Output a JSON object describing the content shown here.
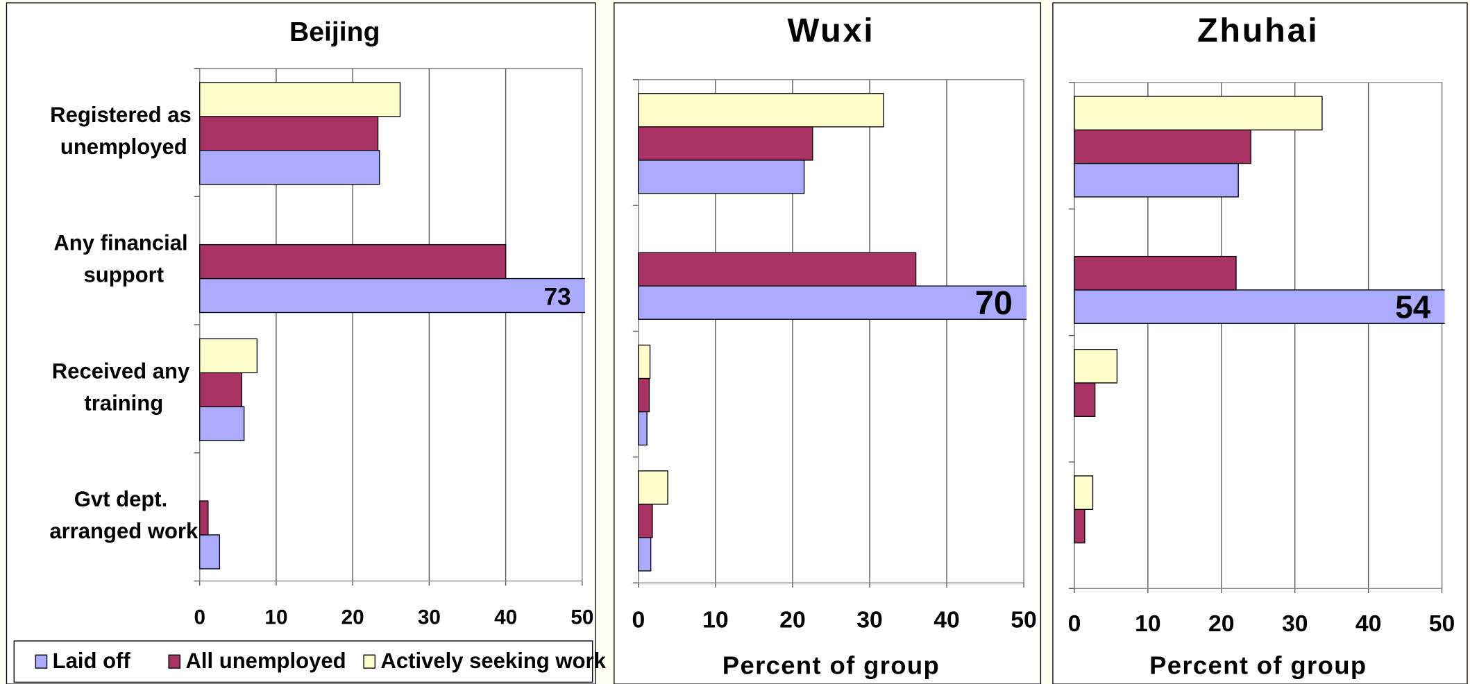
{
  "chart_data": [
    {
      "type": "bar",
      "orientation": "horizontal",
      "title": "Beijing",
      "categories": [
        "Registered as unemployed",
        "Any financial support",
        "Received any training",
        "Gvt dept. arranged work"
      ],
      "series": [
        {
          "name": "Laid off",
          "color": "#aaaaff",
          "values": [
            23.5,
            73,
            5.8,
            2.6
          ],
          "value_labels": [
            null,
            "73",
            null,
            null
          ]
        },
        {
          "name": "All unemployed",
          "color": "#aa3366",
          "values": [
            23.3,
            40,
            5.5,
            1.1
          ]
        },
        {
          "name": "Actively seeking work",
          "color": "#ffffcc",
          "values": [
            26.2,
            null,
            7.5,
            null
          ]
        }
      ],
      "xlim": [
        0,
        50
      ],
      "xticks": [
        0,
        10,
        20,
        30,
        40,
        50
      ],
      "grid": true,
      "legend": "bottom"
    },
    {
      "type": "bar",
      "orientation": "horizontal",
      "title": "Wuxi",
      "categories": [
        null,
        null,
        null,
        null
      ],
      "series": [
        {
          "color": "#aaaaff",
          "values": [
            21.5,
            70,
            1.1,
            1.6
          ],
          "value_labels": [
            null,
            "70",
            null,
            null
          ]
        },
        {
          "color": "#aa3366",
          "values": [
            22.6,
            36,
            1.4,
            1.8
          ]
        },
        {
          "color": "#ffffcc",
          "values": [
            31.8,
            null,
            1.5,
            3.8
          ]
        }
      ],
      "xlim": [
        0,
        50
      ],
      "xticks": [
        0,
        10,
        20,
        30,
        40,
        50
      ],
      "grid": true,
      "x_label": "Percent of group"
    },
    {
      "type": "bar",
      "orientation": "horizontal",
      "title": "Zhuhai",
      "categories": [
        null,
        null,
        null,
        null
      ],
      "series": [
        {
          "color": "#aaaaff",
          "values": [
            22.3,
            54,
            null,
            null
          ],
          "value_labels": [
            null,
            "54",
            null,
            null
          ]
        },
        {
          "color": "#aa3366",
          "values": [
            24,
            22,
            2.8,
            1.4
          ]
        },
        {
          "color": "#ffffcc",
          "values": [
            33.7,
            null,
            5.8,
            2.5
          ]
        }
      ],
      "xlim": [
        0,
        50
      ],
      "xticks": [
        0,
        10,
        20,
        30,
        40,
        50
      ],
      "grid": true,
      "x_label": "Percent of group"
    }
  ]
}
